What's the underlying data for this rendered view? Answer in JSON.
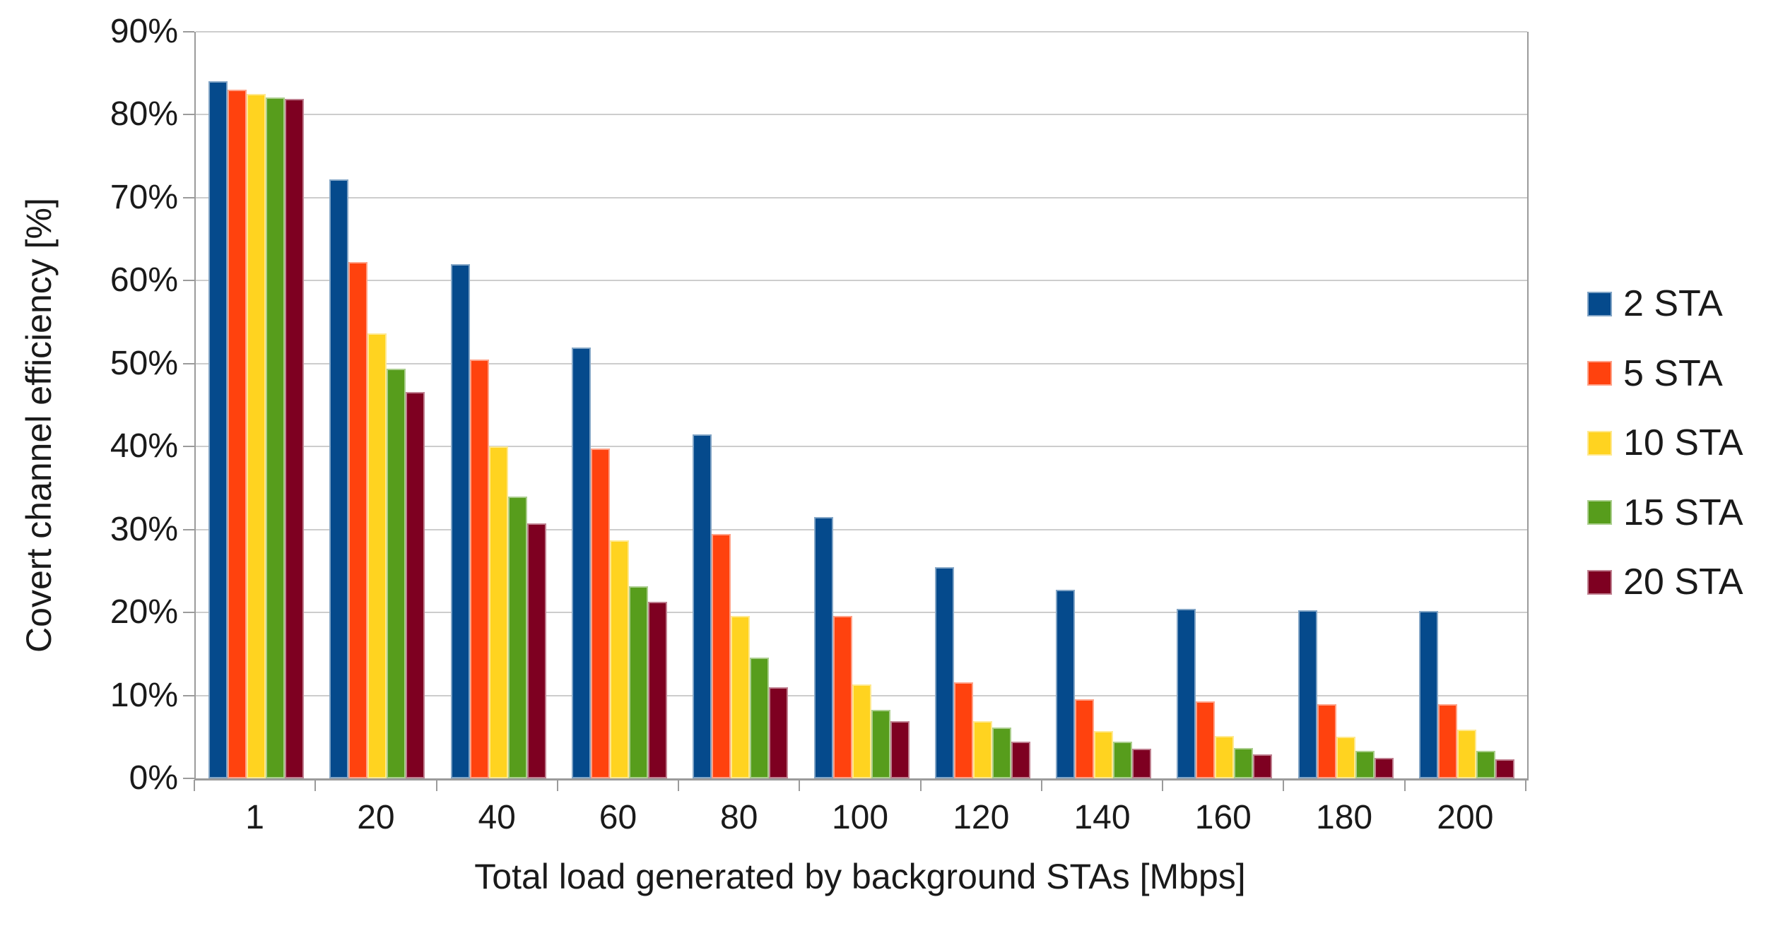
{
  "chart_data": {
    "type": "bar",
    "title": "",
    "xlabel": "Total load generated by background STAs [Mbps]",
    "ylabel": "Covert channel efficiency [%]",
    "categories": [
      "1",
      "20",
      "40",
      "60",
      "80",
      "100",
      "120",
      "140",
      "160",
      "180",
      "200"
    ],
    "y_tick_labels": [
      "0%",
      "10%",
      "20%",
      "30%",
      "40%",
      "50%",
      "60%",
      "70%",
      "80%",
      "90%"
    ],
    "ylim": [
      0,
      90
    ],
    "grid": "horizontal",
    "legend_position": "right",
    "colors": {
      "grid": "#cdcdcd",
      "axis": "#9b9b9b",
      "text": "#1a1a1a",
      "background": "#ffffff"
    },
    "series": [
      {
        "name": "2 STA",
        "color": "#054A8C",
        "values": [
          84.0,
          72.2,
          62.0,
          51.9,
          41.5,
          31.5,
          25.5,
          22.7,
          20.4,
          20.3,
          20.2
        ]
      },
      {
        "name": "5 STA",
        "color": "#FF420E",
        "values": [
          83.0,
          62.2,
          50.5,
          39.8,
          29.5,
          19.6,
          11.6,
          9.5,
          9.3,
          8.9,
          8.9
        ]
      },
      {
        "name": "10 STA",
        "color": "#FFD320",
        "values": [
          82.5,
          53.6,
          40.0,
          28.7,
          19.6,
          11.3,
          6.9,
          5.7,
          5.1,
          5.0,
          5.9
        ]
      },
      {
        "name": "15 STA",
        "color": "#579D1C",
        "values": [
          82.1,
          49.4,
          34.0,
          23.2,
          14.6,
          8.3,
          6.1,
          4.4,
          3.7,
          3.3,
          3.3
        ]
      },
      {
        "name": "20 STA",
        "color": "#7E0021",
        "values": [
          81.9,
          46.6,
          30.7,
          21.3,
          11.0,
          6.9,
          4.4,
          3.6,
          2.9,
          2.5,
          2.3
        ]
      }
    ]
  }
}
